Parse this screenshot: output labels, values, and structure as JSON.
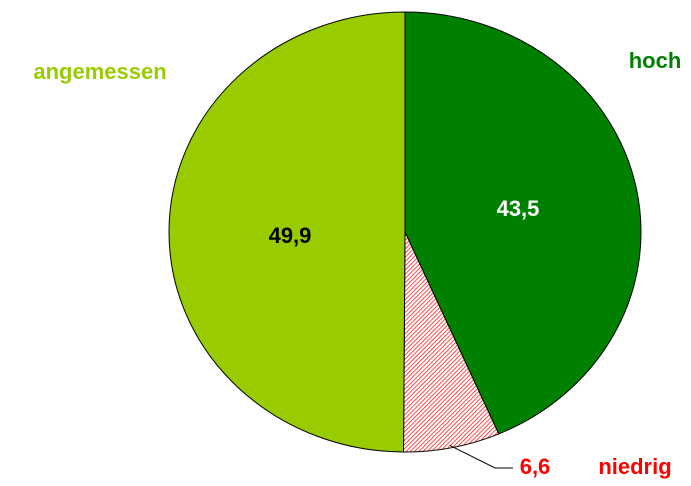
{
  "chart_data": {
    "type": "pie",
    "categories": [
      "hoch",
      "niedrig",
      "angemessen"
    ],
    "values": [
      43.5,
      6.6,
      49.9
    ],
    "value_labels": [
      "43,5",
      "6,6",
      "49,9"
    ],
    "colors": [
      "#008000",
      "#ff0000",
      "#99cc00"
    ],
    "hatched": [
      false,
      true,
      false
    ]
  }
}
